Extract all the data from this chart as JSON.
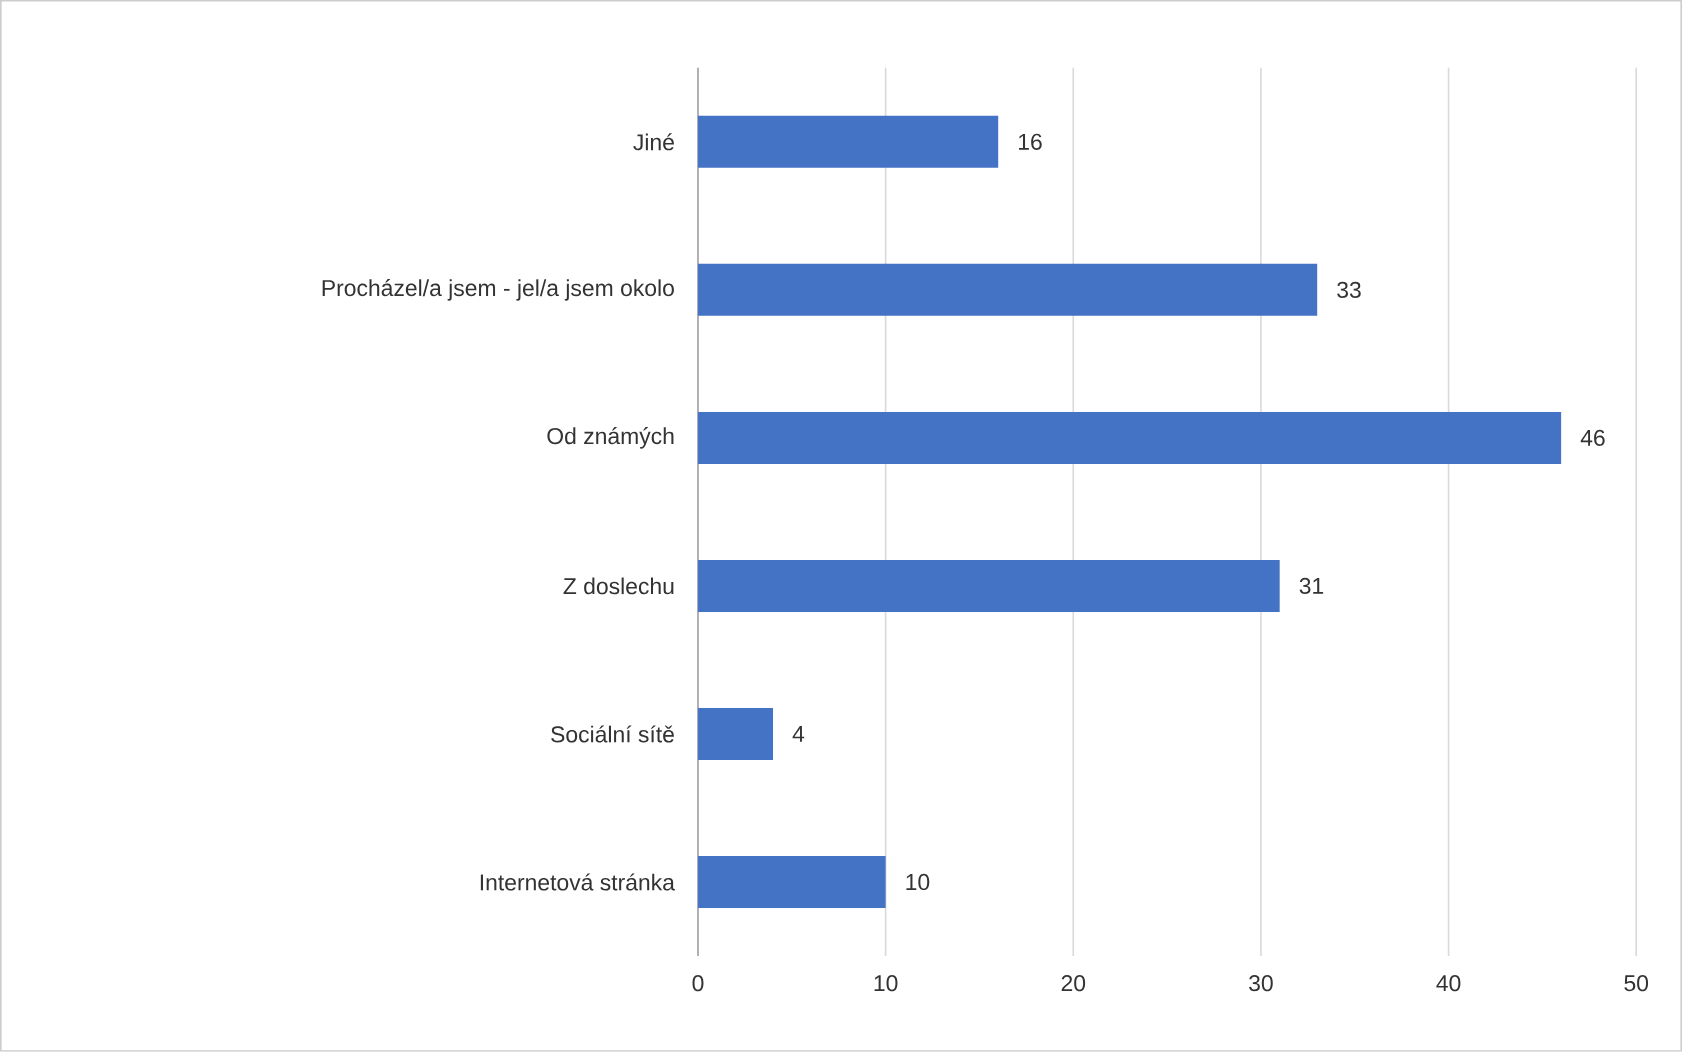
{
  "chart_data": {
    "type": "bar",
    "orientation": "horizontal",
    "categories": [
      "Jiné",
      "Procházel/a jsem - jel/a jsem okolo",
      "Od známých",
      "Z doslechu",
      "Sociální sítě",
      "Internetová stránka"
    ],
    "values": [
      16,
      33,
      46,
      31,
      4,
      10
    ],
    "color": "#4472c4",
    "xlim": [
      0,
      50
    ],
    "xticks": [
      0,
      10,
      20,
      30,
      40,
      50
    ],
    "grid": "x",
    "data_labels": true
  }
}
